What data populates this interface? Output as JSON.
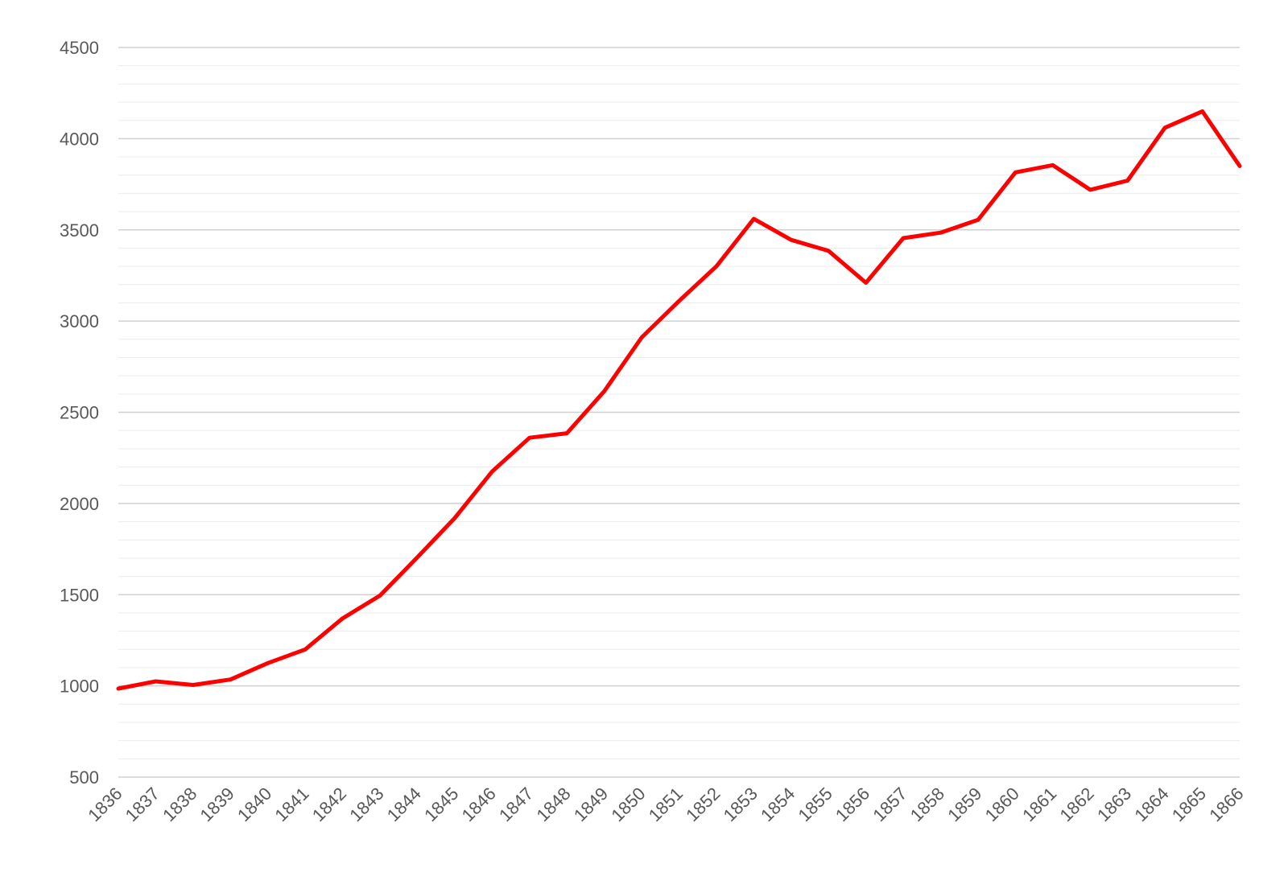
{
  "chart_data": {
    "type": "line",
    "x": [
      1836,
      1837,
      1838,
      1839,
      1840,
      1841,
      1842,
      1843,
      1844,
      1845,
      1846,
      1847,
      1848,
      1849,
      1850,
      1851,
      1852,
      1853,
      1854,
      1855,
      1856,
      1857,
      1858,
      1859,
      1860,
      1861,
      1862,
      1863,
      1864,
      1865,
      1866
    ],
    "x_tick_labels": [
      "1836",
      "1837",
      "1838",
      "1839",
      "1840",
      "1841",
      "1842",
      "1843",
      "1844",
      "1845",
      "1846",
      "1847",
      "1848",
      "1849",
      "1850",
      "1851",
      "1852",
      "1853",
      "1854",
      "1855",
      "1856",
      "1857",
      "1858",
      "1859",
      "1860",
      "1861",
      "1862",
      "1863",
      "1864",
      "1865",
      "1866"
    ],
    "series": [
      {
        "values": [
          985,
          1025,
          1005,
          1035,
          1125,
          1200,
          1370,
          1495,
          1705,
          1920,
          2175,
          2360,
          2385,
          2615,
          2910,
          3110,
          3300,
          3560,
          3445,
          3385,
          3210,
          3455,
          3485,
          3555,
          3815,
          3855,
          3720,
          3770,
          4060,
          4150,
          3850
        ],
        "color": "#ff0000"
      }
    ],
    "y_ticks": [
      500,
      1000,
      1500,
      2000,
      2500,
      3000,
      3500,
      4000,
      4500
    ],
    "y_tick_labels": [
      "500",
      "1000",
      "1500",
      "2000",
      "2500",
      "3000",
      "3500",
      "4000",
      "4500"
    ],
    "ylim": [
      500,
      4500
    ],
    "y_minor_step": 100,
    "title": "",
    "xlabel": "",
    "ylabel": "",
    "grid": true,
    "legend": "none",
    "colors": {
      "major_grid": "#d0d0d0",
      "minor_grid": "#ececec",
      "tick_text": "#595959"
    }
  }
}
